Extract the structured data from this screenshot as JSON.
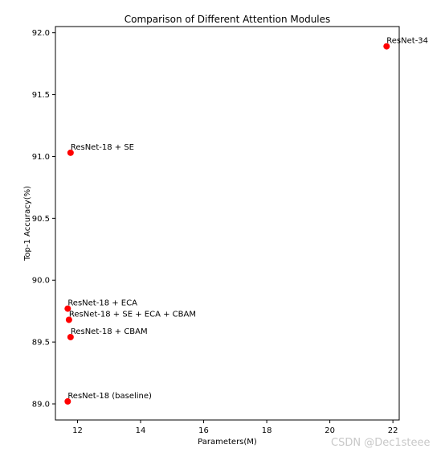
{
  "chart_data": {
    "type": "scatter",
    "title": "Comparison of Different Attention Modules",
    "xlabel": "Parameters(M)",
    "ylabel": "Top-1 Accuracy(%)",
    "xlim": [
      11.3,
      22.2
    ],
    "ylim": [
      88.87,
      92.05
    ],
    "xticks": [
      12,
      14,
      16,
      18,
      20,
      22
    ],
    "yticks": [
      89.0,
      89.5,
      90.0,
      90.5,
      91.0,
      91.5,
      92.0
    ],
    "xtick_labels": [
      "12",
      "14",
      "16",
      "18",
      "20",
      "22"
    ],
    "ytick_labels": [
      "89.0",
      "89.5",
      "90.0",
      "90.5",
      "91.0",
      "91.5",
      "92.0"
    ],
    "grid": false,
    "marker_color": "#ff0000",
    "points": [
      {
        "label": "ResNet-34",
        "x": 21.8,
        "y": 91.89
      },
      {
        "label": "ResNet-18 + SE",
        "x": 11.78,
        "y": 91.03
      },
      {
        "label": "ResNet-18 + ECA",
        "x": 11.69,
        "y": 89.77
      },
      {
        "label": "ResNet-18 + SE + ECA + CBAM",
        "x": 11.73,
        "y": 89.68
      },
      {
        "label": "ResNet-18 + CBAM",
        "x": 11.78,
        "y": 89.54
      },
      {
        "label": "ResNet-18 (baseline)",
        "x": 11.69,
        "y": 89.02
      }
    ]
  },
  "watermark": "CSDN @Dec1steee"
}
